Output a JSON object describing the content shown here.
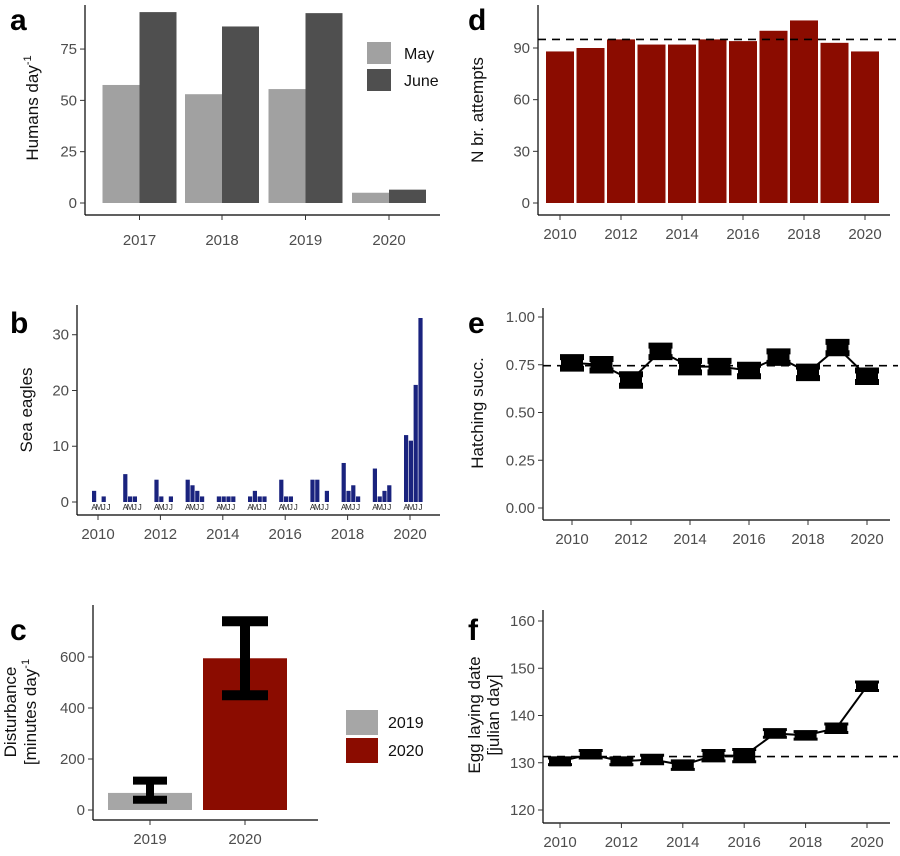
{
  "colors": {
    "may": "#a1a1a1",
    "june": "#4f4f4f",
    "eagle": "#1a237e",
    "dark_red": "#8b0c00",
    "grey_2019": "#a6a6a6",
    "black": "#000000"
  },
  "chart_data": [
    {
      "id": "a",
      "panel_label": "a",
      "type": "bar",
      "ylabel": "Humans day",
      "ylabel_superscript": "-1",
      "categories": [
        "2017",
        "2018",
        "2019",
        "2020"
      ],
      "series": [
        {
          "name": "May",
          "values": [
            57.5,
            53,
            55.5,
            5
          ]
        },
        {
          "name": "June",
          "values": [
            93,
            86,
            92.5,
            6.5
          ]
        }
      ],
      "ylim": [
        0,
        95
      ],
      "yticks": [
        "0",
        "25",
        "50",
        "75"
      ],
      "legend": "right"
    },
    {
      "id": "b",
      "panel_label": "b",
      "type": "bar",
      "ylabel": "Sea eagles",
      "xlim": [
        2009.5,
        2020.5
      ],
      "ylim": [
        0,
        33
      ],
      "yticks": [
        "0",
        "10",
        "20",
        "30"
      ],
      "xticks": [
        "2010",
        "2012",
        "2014",
        "2016",
        "2018",
        "2020"
      ],
      "month_labels": [
        "A",
        "M",
        "J",
        "J"
      ],
      "years": [
        "2010",
        "2011",
        "2012",
        "2013",
        "2014",
        "2015",
        "2016",
        "2017",
        "2018",
        "2019",
        "2020"
      ],
      "monthly_values": [
        [
          2,
          0,
          1,
          0
        ],
        [
          5,
          1,
          1,
          0
        ],
        [
          4,
          1,
          0,
          1
        ],
        [
          4,
          3,
          2,
          1
        ],
        [
          1,
          1,
          1,
          1
        ],
        [
          1,
          2,
          1,
          1
        ],
        [
          4,
          1,
          1,
          0
        ],
        [
          4,
          4,
          0,
          2
        ],
        [
          7,
          2,
          3,
          1
        ],
        [
          6,
          1,
          2,
          3
        ],
        [
          12,
          11,
          21,
          33
        ]
      ]
    },
    {
      "id": "c",
      "panel_label": "c",
      "type": "bar",
      "ylabel_lines": [
        "Disturbance",
        "[minutes day"
      ],
      "ylabel_superscript": "-1",
      "categories": [
        "2019",
        "2020"
      ],
      "values": [
        67,
        595
      ],
      "error_low": [
        40,
        450
      ],
      "error_high": [
        115,
        740
      ],
      "ylim": [
        0,
        760
      ],
      "yticks": [
        "0",
        "200",
        "400",
        "600"
      ],
      "legend_entries": [
        "2019",
        "2020"
      ],
      "legend": "right"
    },
    {
      "id": "d",
      "panel_label": "d",
      "type": "bar",
      "ylabel": "N br. attempts",
      "categories": [
        "2010",
        "2011",
        "2012",
        "2013",
        "2014",
        "2015",
        "2016",
        "2017",
        "2018",
        "2019",
        "2020"
      ],
      "values": [
        88,
        90,
        95,
        92,
        92,
        95,
        94,
        100,
        106,
        93,
        88
      ],
      "mean_line": 95,
      "ylim": [
        0,
        110
      ],
      "yticks": [
        "0",
        "30",
        "60",
        "90"
      ],
      "xticks": [
        "2010",
        "2012",
        "2014",
        "2016",
        "2018",
        "2020"
      ]
    },
    {
      "id": "e",
      "panel_label": "e",
      "type": "line",
      "ylabel": "Hatching succ.",
      "x": [
        2010,
        2011,
        2012,
        2013,
        2014,
        2015,
        2016,
        2017,
        2018,
        2019,
        2020
      ],
      "y": [
        0.76,
        0.75,
        0.67,
        0.82,
        0.74,
        0.74,
        0.72,
        0.79,
        0.71,
        0.84,
        0.69
      ],
      "error_low": [
        0.73,
        0.72,
        0.64,
        0.79,
        0.71,
        0.71,
        0.69,
        0.76,
        0.68,
        0.81,
        0.66
      ],
      "error_high": [
        0.79,
        0.78,
        0.7,
        0.85,
        0.77,
        0.77,
        0.75,
        0.82,
        0.74,
        0.87,
        0.72
      ],
      "mean_line": 0.745,
      "ylim": [
        0,
        1.0
      ],
      "yticks": [
        "0.00",
        "0.25",
        "0.50",
        "0.75",
        "1.00"
      ],
      "xticks": [
        "2010",
        "2012",
        "2014",
        "2016",
        "2018",
        "2020"
      ]
    },
    {
      "id": "f",
      "panel_label": "f",
      "type": "line",
      "ylabel_lines": [
        "Egg laying date",
        "[julian day]"
      ],
      "x": [
        2010,
        2011,
        2012,
        2013,
        2014,
        2015,
        2016,
        2017,
        2018,
        2019,
        2020
      ],
      "y": [
        130.3,
        131.8,
        130.3,
        130.7,
        129.5,
        131.5,
        131.5,
        136.2,
        135.8,
        137.3,
        146.2
      ],
      "error_low": [
        129.6,
        131.0,
        129.6,
        129.8,
        128.6,
        130.4,
        130.2,
        135.4,
        135.0,
        136.4,
        145.3
      ],
      "error_high": [
        131.0,
        132.6,
        131.0,
        131.6,
        130.4,
        132.6,
        132.8,
        137.0,
        136.6,
        138.2,
        147.1
      ],
      "mean_line": 131.3,
      "ylim": [
        118.5,
        161
      ],
      "yticks": [
        "120",
        "130",
        "140",
        "150",
        "160"
      ],
      "xticks": [
        "2010",
        "2012",
        "2014",
        "2016",
        "2018",
        "2020"
      ]
    }
  ]
}
